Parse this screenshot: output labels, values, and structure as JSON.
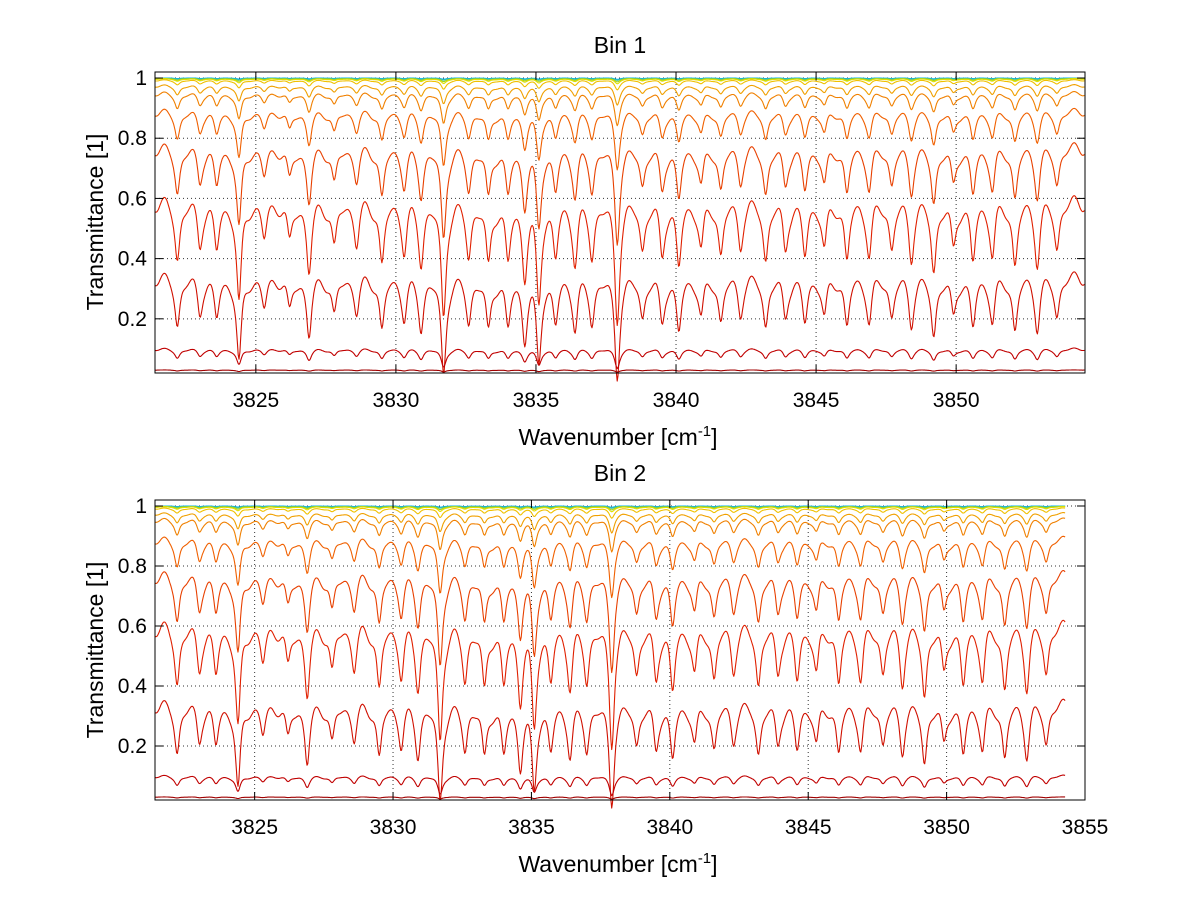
{
  "chart_data": [
    {
      "type": "line",
      "title": "Bin 1",
      "xlabel": "Wavenumber [cm",
      "xlabel_sup": "-1",
      "xlabel_end": "]",
      "ylabel": "Transmittance [1]",
      "xlim": [
        3821.4,
        3854.6
      ],
      "ylim": [
        0.02,
        1.02
      ],
      "xticks": [
        3825,
        3830,
        3835,
        3840,
        3845,
        3850
      ],
      "xtick_labels": [
        "3825",
        "3830",
        "3835",
        "3840",
        "3845",
        "3850"
      ],
      "yticks": [
        0.2,
        0.4,
        0.6,
        0.8,
        1
      ],
      "ytick_labels": [
        "0.2",
        "0.4",
        "0.6",
        "0.8",
        "1"
      ],
      "grid": true,
      "series": [
        {
          "base": 1.0,
          "depth": 0.004,
          "color": "#00b0f0"
        },
        {
          "base": 0.999,
          "depth": 0.006,
          "color": "#40c0a0"
        },
        {
          "base": 0.998,
          "depth": 0.01,
          "color": "#a0d020"
        },
        {
          "base": 0.997,
          "depth": 0.015,
          "color": "#e0e000"
        },
        {
          "base": 0.993,
          "depth": 0.03,
          "color": "#f0c000"
        },
        {
          "base": 0.975,
          "depth": 0.06,
          "color": "#f0a000"
        },
        {
          "base": 0.95,
          "depth": 0.1,
          "color": "#f08000"
        },
        {
          "base": 0.89,
          "depth": 0.18,
          "color": "#f06000"
        },
        {
          "base": 0.77,
          "depth": 0.3,
          "color": "#e84000"
        },
        {
          "base": 0.59,
          "depth": 0.38,
          "color": "#e02000"
        },
        {
          "base": 0.34,
          "depth": 0.32,
          "color": "#d01000"
        },
        {
          "base": 0.1,
          "depth": 0.06,
          "color": "#c00000"
        },
        {
          "base": 0.03,
          "depth": 0.006,
          "color": "#a00000"
        }
      ]
    },
    {
      "type": "line",
      "title": "Bin 2",
      "xlabel": "Wavenumber [cm",
      "xlabel_sup": "-1",
      "xlabel_end": "]",
      "ylabel": "Transmittance [1]",
      "xlim": [
        3821.4,
        3855
      ],
      "ylim": [
        0.02,
        1.02
      ],
      "xticks": [
        3825,
        3830,
        3835,
        3840,
        3845,
        3850,
        3855
      ],
      "xtick_labels": [
        "3825",
        "3830",
        "3835",
        "3840",
        "3845",
        "3850",
        "3855"
      ],
      "yticks": [
        0.2,
        0.4,
        0.6,
        0.8,
        1
      ],
      "ytick_labels": [
        "0.2",
        "0.4",
        "0.6",
        "0.8",
        "1"
      ],
      "grid": true,
      "series": [
        {
          "base": 1.0,
          "depth": 0.004,
          "color": "#00b0f0"
        },
        {
          "base": 0.999,
          "depth": 0.006,
          "color": "#40c0a0"
        },
        {
          "base": 0.998,
          "depth": 0.01,
          "color": "#a0d020"
        },
        {
          "base": 0.997,
          "depth": 0.015,
          "color": "#e0e000"
        },
        {
          "base": 0.992,
          "depth": 0.03,
          "color": "#f0c000"
        },
        {
          "base": 0.975,
          "depth": 0.06,
          "color": "#f0a000"
        },
        {
          "base": 0.955,
          "depth": 0.1,
          "color": "#f08000"
        },
        {
          "base": 0.89,
          "depth": 0.18,
          "color": "#f06000"
        },
        {
          "base": 0.77,
          "depth": 0.3,
          "color": "#e84000"
        },
        {
          "base": 0.6,
          "depth": 0.38,
          "color": "#e02000"
        },
        {
          "base": 0.34,
          "depth": 0.32,
          "color": "#d01000"
        },
        {
          "base": 0.1,
          "depth": 0.06,
          "color": "#c00000"
        },
        {
          "base": 0.03,
          "depth": 0.006,
          "color": "#a00000"
        }
      ]
    }
  ]
}
